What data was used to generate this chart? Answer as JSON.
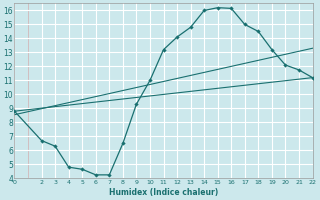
{
  "xlabel": "Humidex (Indice chaleur)",
  "bg_color": "#cce8ec",
  "grid_color": "#ffffff",
  "minor_grid_color": "#e8b4b4",
  "line_color": "#1a7070",
  "xlim": [
    0,
    22
  ],
  "ylim": [
    4,
    16.5
  ],
  "xtick_labels": [
    "0",
    "2",
    "3",
    "4",
    "5",
    "6",
    "7",
    "8",
    "9",
    "10",
    "11",
    "12",
    "13",
    "14",
    "15",
    "16",
    "17",
    "18",
    "19",
    "20",
    "21",
    "22"
  ],
  "xtick_pos": [
    0,
    2,
    3,
    4,
    5,
    6,
    7,
    8,
    9,
    10,
    11,
    12,
    13,
    14,
    15,
    16,
    17,
    18,
    19,
    20,
    21,
    22
  ],
  "ytick_labels": [
    "4",
    "5",
    "6",
    "7",
    "8",
    "9",
    "10",
    "11",
    "12",
    "13",
    "14",
    "15",
    "16"
  ],
  "ytick_pos": [
    4,
    5,
    6,
    7,
    8,
    9,
    10,
    11,
    12,
    13,
    14,
    15,
    16
  ],
  "curve_x": [
    0,
    2,
    3,
    4,
    5,
    6,
    7,
    8,
    9,
    10,
    11,
    12,
    13,
    14,
    15,
    16,
    17,
    18,
    19,
    20,
    21,
    22
  ],
  "curve_y": [
    8.8,
    6.7,
    6.3,
    4.8,
    4.65,
    4.25,
    4.25,
    6.5,
    9.3,
    11.0,
    13.2,
    14.1,
    14.8,
    16.0,
    16.2,
    16.15,
    15.0,
    14.5,
    13.2,
    12.1,
    11.75,
    11.2
  ],
  "line1_x": [
    0,
    22
  ],
  "line1_y": [
    8.8,
    11.2
  ],
  "line2_x": [
    0,
    22
  ],
  "line2_y": [
    8.55,
    13.3
  ]
}
